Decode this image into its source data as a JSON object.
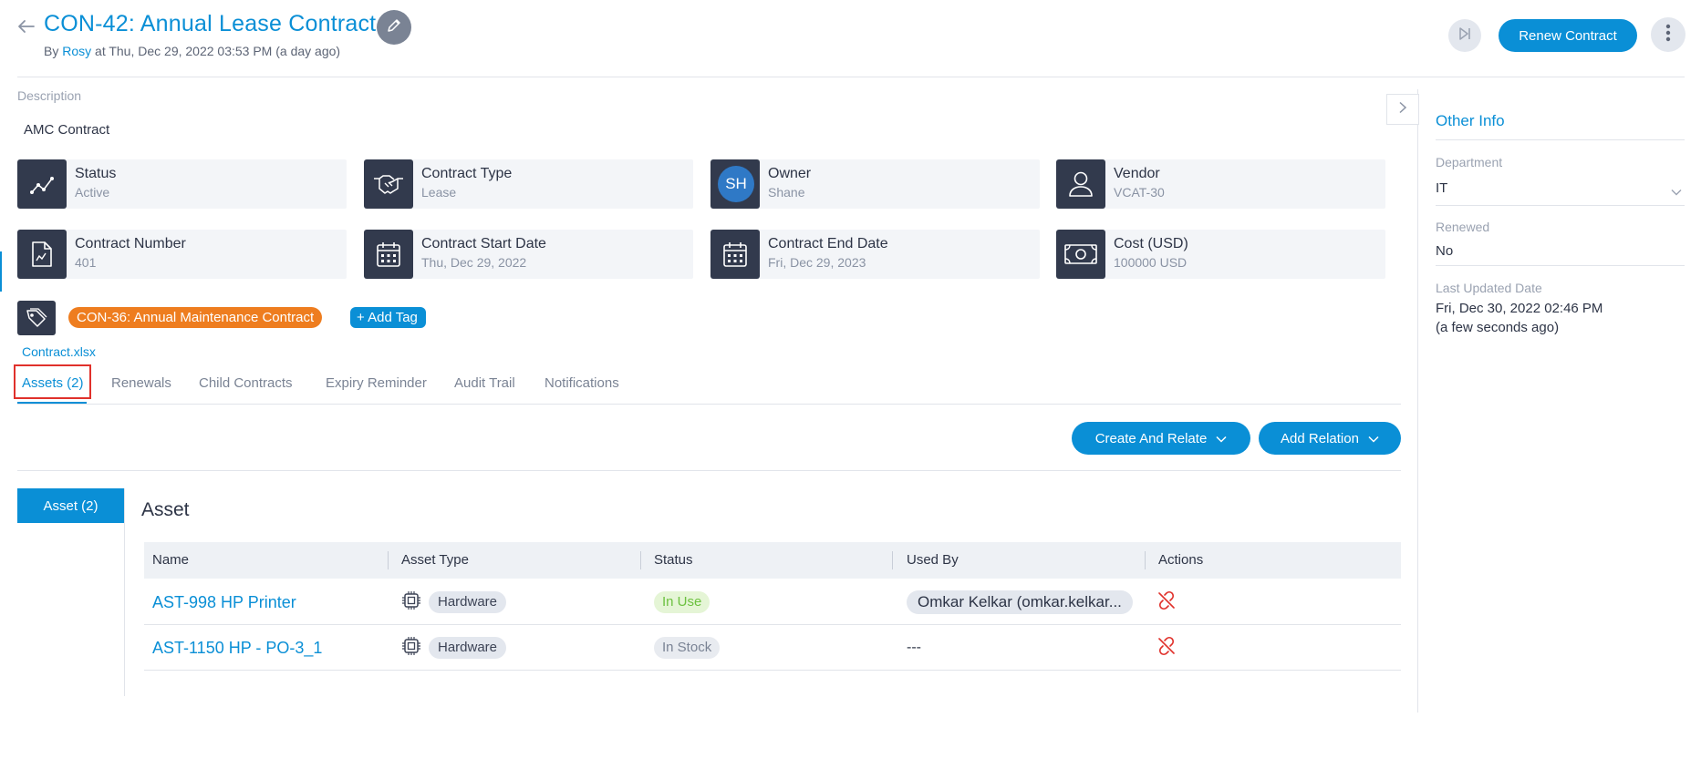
{
  "header": {
    "title": "CON-42: Annual Lease Contract",
    "by_prefix": "By",
    "user": "Rosy",
    "meta": "at Thu, Dec 29, 2022 03:53 PM (a day ago)",
    "renew_label": "Renew Contract",
    "icons": [
      "back-arrow-icon",
      "pencil-icon",
      "skip-forward-icon",
      "more-vertical-icon"
    ]
  },
  "description": {
    "label": "Description",
    "value": "AMC Contract"
  },
  "cards": [
    {
      "label": "Status",
      "value": "Active",
      "icon": "trend-line-icon"
    },
    {
      "label": "Contract Type",
      "value": "Lease",
      "icon": "handshake-icon"
    },
    {
      "label": "Owner",
      "value": "Shane",
      "initials": "SH"
    },
    {
      "label": "Vendor",
      "value": "VCAT-30",
      "icon": "user-icon"
    },
    {
      "label": "Contract Number",
      "value": "401",
      "icon": "document-icon"
    },
    {
      "label": "Contract Start Date",
      "value": "Thu, Dec 29, 2022",
      "icon": "calendar-icon"
    },
    {
      "label": "Contract End Date",
      "value": "Fri, Dec 29, 2023",
      "icon": "calendar-icon"
    },
    {
      "label": "Cost (USD)",
      "value": "100000 USD",
      "icon": "money-icon"
    }
  ],
  "tags": {
    "chip": "CON-36: Annual Maintenance Contract",
    "add_label": "Add Tag"
  },
  "attachment": "Contract.xlsx",
  "tabs": [
    "Assets (2)",
    "Renewals",
    "Child Contracts",
    "Expiry Reminder",
    "Audit Trail",
    "Notifications"
  ],
  "actions": {
    "create_relate": "Create And Relate",
    "add_relation": "Add Relation"
  },
  "relations": {
    "side_tab": "Asset (2)",
    "heading": "Asset",
    "columns": [
      "Name",
      "Asset Type",
      "Status",
      "Used By",
      "Actions"
    ],
    "rows": [
      {
        "name": "AST-998 HP Printer",
        "type": "Hardware",
        "status": "In Use",
        "used_by": "Omkar Kelkar (omkar.kelkar..."
      },
      {
        "name": "AST-1150 HP - PO-3_1",
        "type": "Hardware",
        "status": "In Stock",
        "used_by": "---"
      }
    ]
  },
  "sidebar": {
    "title": "Other Info",
    "department_label": "Department",
    "department_value": "IT",
    "renewed_label": "Renewed",
    "renewed_value": "No",
    "updated_label": "Last Updated Date",
    "updated_value": "Fri, Dec 30, 2022 02:46 PM",
    "updated_relative": "(a few seconds ago)"
  },
  "colors": {
    "accent": "#0a8fd6",
    "icon_bg": "#323a4d",
    "tag_orange": "#ee7d1f",
    "in_use": "#6cc13f",
    "unlink_red": "#e0312b"
  }
}
